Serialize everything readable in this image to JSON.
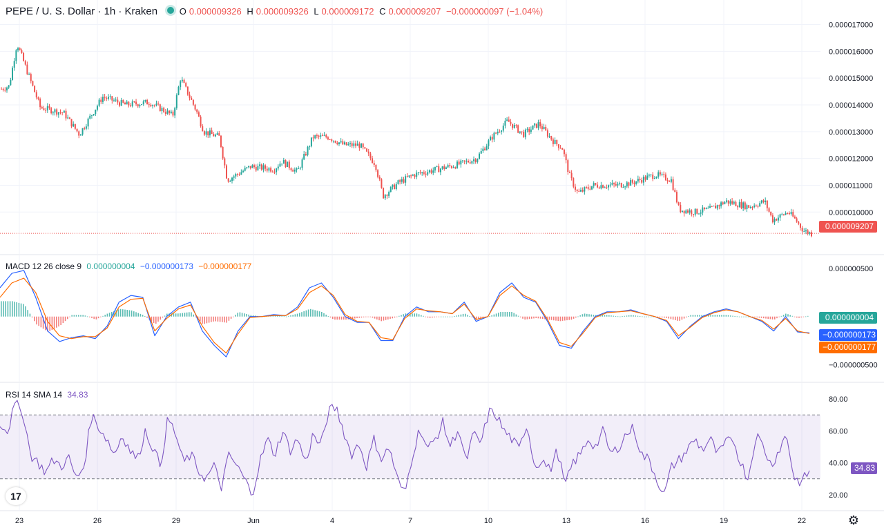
{
  "header": {
    "symbol": "PEPE / U. S. Dollar · 1h · Kraken",
    "o_label": "O",
    "o_value": "0.000009326",
    "h_label": "H",
    "h_value": "0.000009326",
    "l_label": "L",
    "l_value": "0.000009172",
    "c_label": "C",
    "c_value": "0.000009207",
    "change": "−0.000000097 (−1.04%)"
  },
  "macd": {
    "title": "MACD 12 26 close 9",
    "hist": "0.000000004",
    "macd": "−0.000000173",
    "signal": "−0.000000177",
    "badge_hist": "0.000000004",
    "badge_macd": "−0.000000173",
    "badge_signal": "−0.000000177"
  },
  "rsi": {
    "title": "RSI 14 SMA 14",
    "value": "34.83",
    "badge": "34.83"
  },
  "price_badge": "0.000009207",
  "colors": {
    "up": "#26a69a",
    "down": "#ef5350",
    "macd": "#2962ff",
    "signal": "#ff6d00",
    "rsi": "#7e57c2"
  },
  "icons": {
    "logo": "tradingview-logo-icon",
    "settings": "gear-icon"
  },
  "chart_data": [
    {
      "type": "candlestick",
      "title": "PEPE / U. S. Dollar · 1h · Kraken",
      "y_ticks": [
        "0.000017000",
        "0.000016000",
        "0.000015000",
        "0.000014000",
        "0.000013000",
        "0.000012000",
        "0.000011000",
        "0.000010000"
      ],
      "y_tick_values": [
        1.7e-05,
        1.6e-05,
        1.5e-05,
        1.4e-05,
        1.3e-05,
        1.2e-05,
        1.1e-05,
        1e-05
      ],
      "ylim": [
        8.9e-06,
        1.74e-05
      ],
      "x_ticks": [
        "23",
        "26",
        "29",
        "Jun",
        "4",
        "7",
        "10",
        "13",
        "16",
        "19",
        "22"
      ],
      "last_close": 9.207e-06,
      "close_path": [
        {
          "x": 0,
          "y": 1.46e-05
        },
        {
          "x": 1,
          "y": 1.47e-05
        },
        {
          "x": 2,
          "y": 1.63e-05
        },
        {
          "x": 3,
          "y": 1.55e-05
        },
        {
          "x": 5,
          "y": 1.39e-05
        },
        {
          "x": 8,
          "y": 1.37e-05
        },
        {
          "x": 10,
          "y": 1.29e-05
        },
        {
          "x": 13,
          "y": 1.43e-05
        },
        {
          "x": 16,
          "y": 1.4e-05
        },
        {
          "x": 19,
          "y": 1.41e-05
        },
        {
          "x": 22,
          "y": 1.36e-05
        },
        {
          "x": 23,
          "y": 1.5e-05
        },
        {
          "x": 25,
          "y": 1.38e-05
        },
        {
          "x": 26,
          "y": 1.3e-05
        },
        {
          "x": 28,
          "y": 1.28e-05
        },
        {
          "x": 29,
          "y": 1.12e-05
        },
        {
          "x": 32,
          "y": 1.17e-05
        },
        {
          "x": 35,
          "y": 1.16e-05
        },
        {
          "x": 36,
          "y": 1.19e-05
        },
        {
          "x": 38,
          "y": 1.15e-05
        },
        {
          "x": 40,
          "y": 1.28e-05
        },
        {
          "x": 42,
          "y": 1.28e-05
        },
        {
          "x": 44,
          "y": 1.25e-05
        },
        {
          "x": 46,
          "y": 1.25e-05
        },
        {
          "x": 48,
          "y": 1.18e-05
        },
        {
          "x": 49,
          "y": 1.06e-05
        },
        {
          "x": 51,
          "y": 1.11e-05
        },
        {
          "x": 53,
          "y": 1.14e-05
        },
        {
          "x": 56,
          "y": 1.16e-05
        },
        {
          "x": 59,
          "y": 1.18e-05
        },
        {
          "x": 61,
          "y": 1.2e-05
        },
        {
          "x": 63,
          "y": 1.28e-05
        },
        {
          "x": 65,
          "y": 1.34e-05
        },
        {
          "x": 67,
          "y": 1.29e-05
        },
        {
          "x": 69,
          "y": 1.33e-05
        },
        {
          "x": 71,
          "y": 1.26e-05
        },
        {
          "x": 72,
          "y": 1.24e-05
        },
        {
          "x": 73,
          "y": 1.13e-05
        },
        {
          "x": 74,
          "y": 1.07e-05
        },
        {
          "x": 76,
          "y": 1.1e-05
        },
        {
          "x": 79,
          "y": 1.1e-05
        },
        {
          "x": 81,
          "y": 1.11e-05
        },
        {
          "x": 84,
          "y": 1.14e-05
        },
        {
          "x": 86,
          "y": 1.12e-05
        },
        {
          "x": 87,
          "y": 1.01e-05
        },
        {
          "x": 89,
          "y": 1e-05
        },
        {
          "x": 91,
          "y": 1.01e-05
        },
        {
          "x": 93,
          "y": 1.04e-05
        },
        {
          "x": 96,
          "y": 1.02e-05
        },
        {
          "x": 98,
          "y": 1.04e-05
        },
        {
          "x": 99,
          "y": 9.7e-06
        },
        {
          "x": 101,
          "y": 1e-05
        },
        {
          "x": 102,
          "y": 9.7e-06
        },
        {
          "x": 103,
          "y": 9.3e-06
        },
        {
          "x": 104,
          "y": 9.2e-06
        }
      ]
    },
    {
      "type": "line",
      "title": "MACD 12 26 close 9",
      "y_ticks": [
        "0.000000500",
        "−0.000000500"
      ],
      "y_tick_values": [
        5e-07,
        -5e-07
      ],
      "ylim": [
        -6.2e-07,
        5.8e-07
      ],
      "series": [
        {
          "name": "MACD",
          "values": [
            3e-07,
            4.5e-07,
            4.8e-07,
            2e-07,
            -1.5e-07,
            -2.6e-07,
            -2.2e-07,
            -2e-07,
            -2.3e-07,
            -1e-07,
            1.5e-07,
            2.2e-07,
            2e-07,
            -2e-07,
            0,
            1e-07,
            1.5e-07,
            -1.5e-07,
            -3e-07,
            -4.2e-07,
            -1.5e-07,
            0,
            0,
            2e-08,
            1e-08,
            1e-07,
            3e-07,
            3.5e-07,
            2e-07,
            0,
            -6e-08,
            -6e-08,
            -2.5e-07,
            -2.5e-07,
            0,
            1e-07,
            5e-08,
            5e-08,
            3e-08,
            1.5e-07,
            -5e-08,
            0,
            2.5e-07,
            3.5e-07,
            2e-07,
            1.5e-07,
            -5e-08,
            -3e-07,
            -3.3e-07,
            -1.5e-07,
            0,
            5e-08,
            5e-08,
            7e-08,
            3e-08,
            0,
            -5e-08,
            -2.3e-07,
            -1e-07,
            0,
            5e-08,
            8e-08,
            5e-08,
            0,
            -5e-08,
            -1.5e-07,
            0,
            -1.6e-07,
            -1.7e-07
          ]
        },
        {
          "name": "Signal",
          "values": [
            2e-07,
            3.5e-07,
            4e-07,
            2.5e-07,
            -5e-08,
            -2e-07,
            -2.3e-07,
            -2.1e-07,
            -2.1e-07,
            -1.2e-07,
            1e-07,
            1.8e-07,
            1.9e-07,
            -1.5e-07,
            -2e-08,
            8e-08,
            1.2e-07,
            -1e-07,
            -2.7e-07,
            -3.8e-07,
            -1.8e-07,
            -1e-08,
            0,
            1e-08,
            1e-08,
            8e-08,
            2.5e-07,
            3.2e-07,
            2.2e-07,
            2e-08,
            -5e-08,
            -6e-08,
            -2.2e-07,
            -2.4e-07,
            -2e-08,
            8e-08,
            6e-08,
            5e-08,
            3e-08,
            1.3e-07,
            -3e-08,
            0,
            2.2e-07,
            3.2e-07,
            2.2e-07,
            1.6e-07,
            -3e-08,
            -2.7e-07,
            -3.1e-07,
            -1.7e-07,
            -1e-08,
            4e-08,
            5e-08,
            6e-08,
            3e-08,
            0,
            -4e-08,
            -2e-07,
            -1.1e-07,
            -1e-08,
            4e-08,
            7e-08,
            5e-08,
            0,
            -4e-08,
            -1.3e-07,
            -2e-08,
            -1.5e-07,
            -1.77e-07
          ]
        }
      ]
    },
    {
      "type": "line",
      "title": "RSI 14 SMA 14",
      "y_ticks": [
        "80.00",
        "60.00",
        "40.00",
        "20.00"
      ],
      "y_tick_values": [
        80,
        60,
        40,
        20
      ],
      "ylim": [
        10,
        90
      ],
      "bands": [
        30,
        70
      ],
      "series": [
        {
          "name": "RSI",
          "values": [
            65,
            60,
            77,
            72,
            45,
            40,
            34,
            42,
            38,
            43,
            30,
            38,
            70,
            62,
            55,
            45,
            58,
            48,
            42,
            60,
            50,
            38,
            68,
            58,
            40,
            45,
            35,
            30,
            38,
            25,
            45,
            38,
            30,
            20,
            40,
            55,
            45,
            60,
            48,
            55,
            40,
            58,
            50,
            72,
            75,
            60,
            45,
            52,
            38,
            55,
            42,
            50,
            30,
            20,
            45,
            62,
            48,
            55,
            65,
            50,
            62,
            40,
            58,
            52,
            72,
            70,
            60,
            55,
            48,
            65,
            38,
            42,
            35,
            48,
            25,
            40,
            45,
            55,
            50,
            60,
            45,
            50,
            58,
            62,
            45,
            42,
            30,
            20,
            38,
            42,
            48,
            55,
            48,
            55,
            45,
            52,
            55,
            40,
            30,
            58,
            50,
            38,
            48,
            58,
            30,
            28,
            35
          ]
        }
      ]
    }
  ]
}
